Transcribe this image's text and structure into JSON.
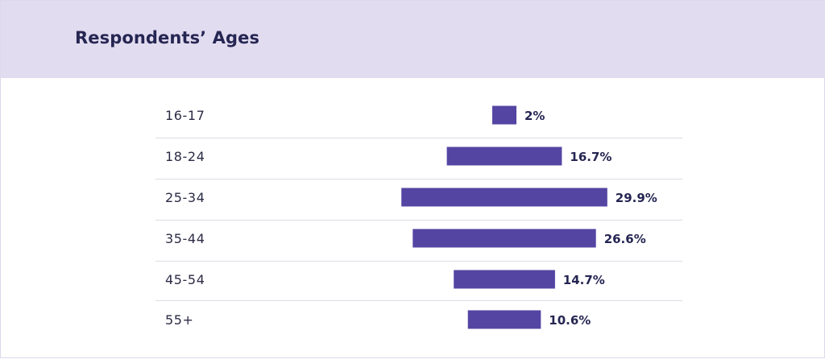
{
  "colors": {
    "header_bg": "#e2dcf0",
    "bar": "#5445a3",
    "title": "#262653",
    "divider": "#dcdce4"
  },
  "chart_data": {
    "type": "bar",
    "orientation": "horizontal",
    "title": "Respondents’ Ages",
    "categories": [
      "16-17",
      "18-24",
      "25-34",
      "35-44",
      "45-54",
      "55+"
    ],
    "values": [
      2,
      16.7,
      29.9,
      26.6,
      14.7,
      10.6
    ],
    "value_labels": [
      "2%",
      "16.7%",
      "29.9%",
      "26.6%",
      "14.7%",
      "10.6%"
    ],
    "unit": "%",
    "xlim": [
      0,
      30
    ],
    "grid": false,
    "legend": "none"
  }
}
